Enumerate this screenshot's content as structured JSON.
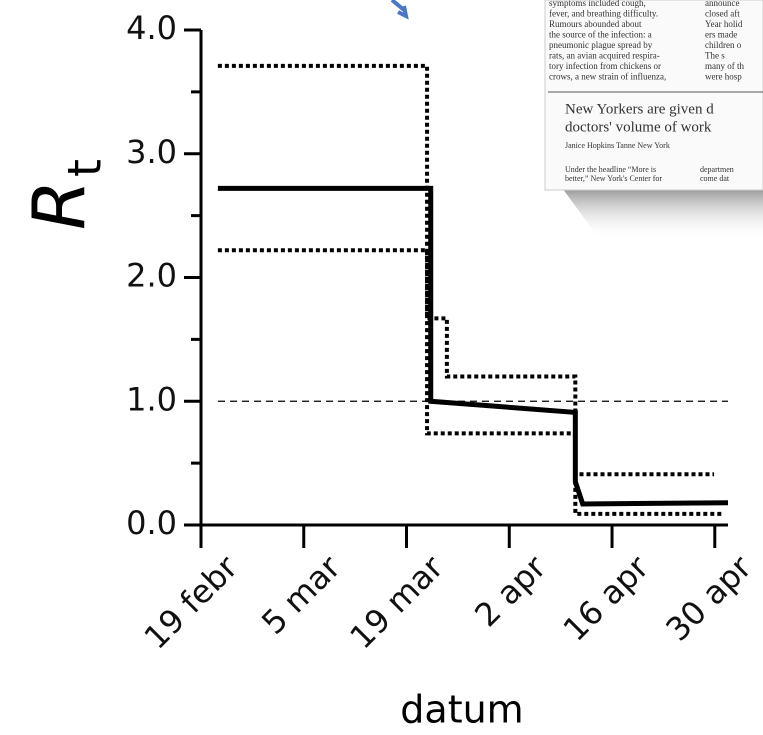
{
  "chart_data": {
    "type": "line",
    "ylabel": "R",
    "ylabel_sub": "t",
    "xlabel": "datum",
    "xlim": [
      0,
      71.8
    ],
    "ylim": [
      0,
      4
    ],
    "xticks": [
      {
        "value": 0,
        "label": "19 febr"
      },
      {
        "value": 14,
        "label": "5 mar"
      },
      {
        "value": 28,
        "label": "19 mar"
      },
      {
        "value": 42,
        "label": "2 apr"
      },
      {
        "value": 56,
        "label": "16 apr"
      },
      {
        "value": 70,
        "label": "30 apr"
      }
    ],
    "yticks": [
      {
        "value": 0,
        "label": "0.0"
      },
      {
        "value": 1,
        "label": "1.0"
      },
      {
        "value": 2,
        "label": "2.0"
      },
      {
        "value": 3,
        "label": "3.0"
      },
      {
        "value": 4,
        "label": "4.0"
      }
    ],
    "yminor": [
      0.5,
      1.5,
      2.5,
      3.5
    ],
    "hline": 1,
    "series": [
      {
        "style": "solid",
        "color": "#000000",
        "x": [
          2.3,
          31.3,
          31.3,
          51,
          51,
          52,
          71.8
        ],
        "values": [
          2.72,
          2.72,
          1.0,
          0.91,
          0.35,
          0.17,
          0.18
        ]
      },
      {
        "style": "dotted",
        "color": "#000000",
        "x": [
          2.3,
          30.8,
          30.8,
          33.5,
          33.5,
          51,
          51,
          69.9
        ],
        "values": [
          3.71,
          3.71,
          1.67,
          1.67,
          1.2,
          1.2,
          0.41,
          0.41
        ]
      },
      {
        "style": "dotted",
        "color": "#000000",
        "x": [
          2.3,
          30.8,
          30.8,
          51,
          51,
          71
        ],
        "values": [
          2.22,
          2.22,
          0.74,
          0.74,
          0.09,
          0.09
        ]
      }
    ]
  },
  "inset": {
    "left_column": [
      "symptoms included cough,",
      "fever, and breathing difficulty.",
      "Rumours abounded about",
      "the source of the infection: a",
      "pneumonic plague spread by",
      "rats, an avian acquired respira-",
      "tory infection from chickens or",
      "crows, a new strain of influenza,"
    ],
    "right_column": [
      "announce",
      "closed aft",
      "Year holid",
      "ers made",
      "children o",
      "The s",
      "many of th",
      "were hosp"
    ],
    "headline": [
      "New Yorkers are given d",
      "doctors' volume of work"
    ],
    "byline": "Janice Hopkins Tanne New York",
    "body_left": [
      "Under the headline “More is",
      "better,” New York's Center for"
    ],
    "body_right": [
      "departmen",
      "come dat"
    ]
  }
}
